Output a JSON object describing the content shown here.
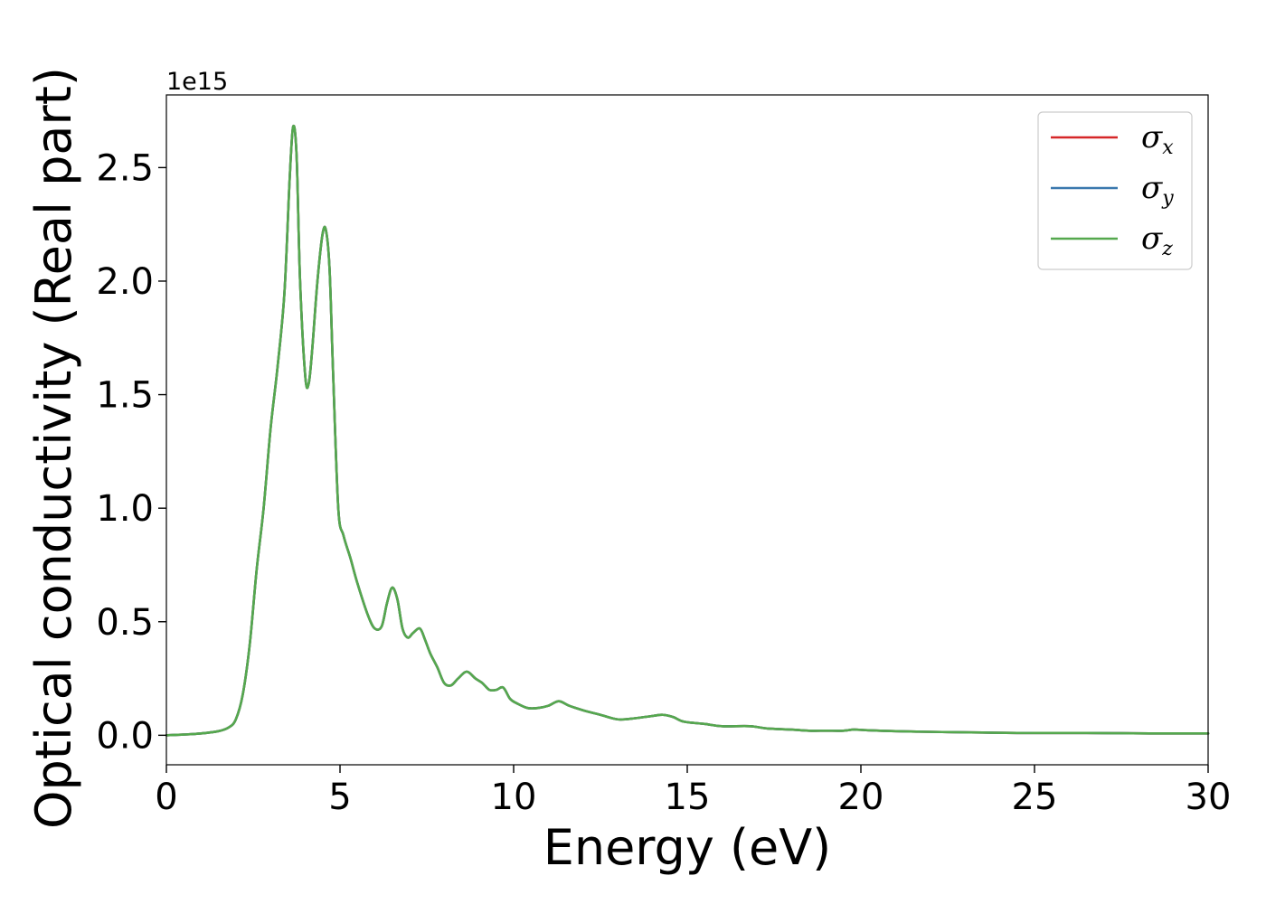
{
  "chart_data": {
    "type": "line",
    "title": "",
    "xlabel": "Energy (eV)",
    "ylabel": "Optical conductivity (Real part)",
    "y_offset_label": "1e15",
    "xlim": [
      0,
      30
    ],
    "ylim": [
      -0.13,
      2.82
    ],
    "x_ticks": [
      0,
      5,
      10,
      15,
      20,
      25,
      30
    ],
    "x_tick_labels": [
      "0",
      "5",
      "10",
      "15",
      "20",
      "25",
      "30"
    ],
    "y_ticks": [
      0.0,
      0.5,
      1.0,
      1.5,
      2.0,
      2.5
    ],
    "y_tick_labels": [
      "0.0",
      "0.5",
      "1.0",
      "1.5",
      "2.0",
      "2.5"
    ],
    "grid": false,
    "legend_position": "top-right",
    "x": [
      0,
      0.5,
      1.0,
      1.5,
      1.8,
      2.0,
      2.2,
      2.4,
      2.6,
      2.8,
      3.0,
      3.2,
      3.4,
      3.55,
      3.65,
      3.75,
      3.85,
      4.0,
      4.1,
      4.2,
      4.35,
      4.5,
      4.6,
      4.7,
      4.8,
      4.95,
      5.1,
      5.3,
      5.5,
      5.8,
      6.0,
      6.2,
      6.35,
      6.5,
      6.65,
      6.8,
      6.95,
      7.1,
      7.3,
      7.45,
      7.6,
      7.8,
      8.0,
      8.2,
      8.4,
      8.65,
      8.9,
      9.1,
      9.3,
      9.5,
      9.7,
      9.9,
      10.1,
      10.4,
      10.7,
      11.0,
      11.3,
      11.6,
      12.0,
      12.5,
      13.0,
      13.5,
      14.0,
      14.3,
      14.6,
      14.9,
      15.5,
      16.0,
      16.8,
      17.3,
      18.0,
      18.5,
      19.0,
      19.5,
      19.8,
      20.2,
      21.0,
      21.6,
      22.5,
      23.5,
      24.5,
      25.5,
      26.5,
      27.5,
      28.5,
      30.0
    ],
    "series": [
      {
        "name": "σx",
        "color": "#d62728",
        "values": [
          0.0,
          0.003,
          0.008,
          0.018,
          0.035,
          0.07,
          0.18,
          0.4,
          0.73,
          1.0,
          1.35,
          1.62,
          1.95,
          2.45,
          2.68,
          2.55,
          2.0,
          1.58,
          1.55,
          1.7,
          2.0,
          2.21,
          2.22,
          2.05,
          1.6,
          1.0,
          0.88,
          0.78,
          0.67,
          0.53,
          0.47,
          0.48,
          0.58,
          0.65,
          0.6,
          0.47,
          0.43,
          0.45,
          0.47,
          0.42,
          0.36,
          0.3,
          0.23,
          0.22,
          0.25,
          0.28,
          0.25,
          0.23,
          0.2,
          0.2,
          0.21,
          0.16,
          0.14,
          0.12,
          0.12,
          0.13,
          0.15,
          0.13,
          0.11,
          0.09,
          0.07,
          0.075,
          0.085,
          0.09,
          0.08,
          0.06,
          0.05,
          0.04,
          0.04,
          0.03,
          0.025,
          0.02,
          0.02,
          0.02,
          0.025,
          0.022,
          0.018,
          0.016,
          0.014,
          0.012,
          0.01,
          0.01,
          0.01,
          0.009,
          0.008,
          0.008
        ]
      },
      {
        "name": "σy",
        "color": "#3a78ae",
        "values": [
          0.0,
          0.003,
          0.008,
          0.018,
          0.035,
          0.07,
          0.18,
          0.4,
          0.73,
          1.0,
          1.35,
          1.62,
          1.95,
          2.45,
          2.68,
          2.55,
          2.0,
          1.58,
          1.55,
          1.7,
          2.0,
          2.21,
          2.22,
          2.05,
          1.6,
          1.0,
          0.88,
          0.78,
          0.67,
          0.53,
          0.47,
          0.48,
          0.58,
          0.65,
          0.6,
          0.47,
          0.43,
          0.45,
          0.47,
          0.42,
          0.36,
          0.3,
          0.23,
          0.22,
          0.25,
          0.28,
          0.25,
          0.23,
          0.2,
          0.2,
          0.21,
          0.16,
          0.14,
          0.12,
          0.12,
          0.13,
          0.15,
          0.13,
          0.11,
          0.09,
          0.07,
          0.075,
          0.085,
          0.09,
          0.08,
          0.06,
          0.05,
          0.04,
          0.04,
          0.03,
          0.025,
          0.02,
          0.02,
          0.02,
          0.025,
          0.022,
          0.018,
          0.016,
          0.014,
          0.012,
          0.01,
          0.01,
          0.01,
          0.009,
          0.008,
          0.008
        ]
      },
      {
        "name": "σz",
        "color": "#55a84e",
        "values": [
          0.0,
          0.003,
          0.008,
          0.018,
          0.035,
          0.07,
          0.18,
          0.4,
          0.73,
          1.0,
          1.35,
          1.62,
          1.95,
          2.45,
          2.68,
          2.55,
          2.0,
          1.58,
          1.55,
          1.7,
          2.0,
          2.21,
          2.22,
          2.05,
          1.6,
          1.0,
          0.88,
          0.78,
          0.67,
          0.53,
          0.47,
          0.48,
          0.58,
          0.65,
          0.6,
          0.47,
          0.43,
          0.45,
          0.47,
          0.42,
          0.36,
          0.3,
          0.23,
          0.22,
          0.25,
          0.28,
          0.25,
          0.23,
          0.2,
          0.2,
          0.21,
          0.16,
          0.14,
          0.12,
          0.12,
          0.13,
          0.15,
          0.13,
          0.11,
          0.09,
          0.07,
          0.075,
          0.085,
          0.09,
          0.08,
          0.06,
          0.05,
          0.04,
          0.04,
          0.03,
          0.025,
          0.02,
          0.02,
          0.02,
          0.025,
          0.022,
          0.018,
          0.016,
          0.014,
          0.012,
          0.01,
          0.01,
          0.01,
          0.009,
          0.008,
          0.008
        ]
      }
    ],
    "legend": [
      {
        "symbol": "σ",
        "sub": "x"
      },
      {
        "symbol": "σ",
        "sub": "y"
      },
      {
        "symbol": "σ",
        "sub": "z"
      }
    ]
  }
}
